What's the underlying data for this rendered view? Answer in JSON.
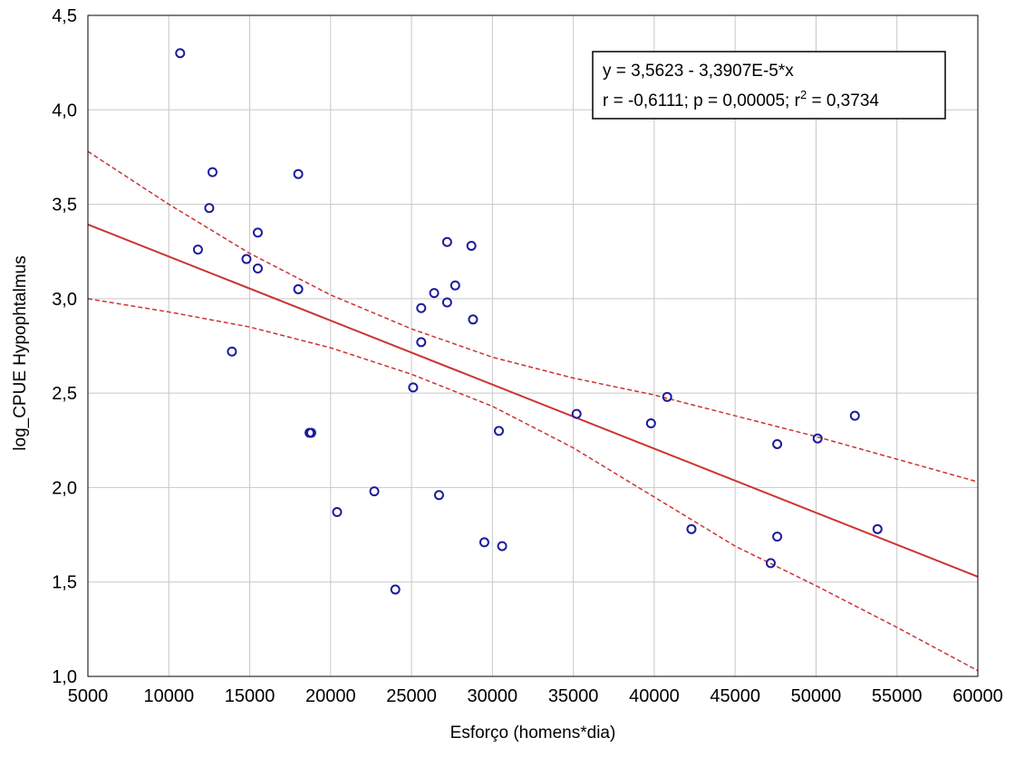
{
  "chart_data": {
    "type": "scatter",
    "title": "",
    "xlabel": "Esforço (homens*dia)",
    "ylabel": "log_CPUE Hypophtalmus",
    "xlim": [
      5000,
      60000
    ],
    "ylim": [
      1.0,
      4.5
    ],
    "xticks": [
      5000,
      10000,
      15000,
      20000,
      25000,
      30000,
      35000,
      40000,
      45000,
      50000,
      55000,
      60000
    ],
    "yticks": [
      1.0,
      1.5,
      2.0,
      2.5,
      3.0,
      3.5,
      4.0,
      4.5
    ],
    "xtick_labels": [
      "5000",
      "10000",
      "15000",
      "20000",
      "25000",
      "30000",
      "35000",
      "40000",
      "45000",
      "50000",
      "55000",
      "60000"
    ],
    "ytick_labels": [
      "1,0",
      "1,5",
      "2,0",
      "2,5",
      "3,0",
      "3,5",
      "4,0",
      "4,5"
    ],
    "grid": true,
    "points": [
      [
        10700,
        4.3
      ],
      [
        11800,
        3.26
      ],
      [
        12500,
        3.48
      ],
      [
        12700,
        3.67
      ],
      [
        13900,
        2.72
      ],
      [
        14800,
        3.21
      ],
      [
        15500,
        3.35
      ],
      [
        15500,
        3.16
      ],
      [
        18000,
        3.66
      ],
      [
        18000,
        3.05
      ],
      [
        18700,
        2.29
      ],
      [
        18800,
        2.29
      ],
      [
        20400,
        1.87
      ],
      [
        22700,
        1.98
      ],
      [
        24000,
        1.46
      ],
      [
        25100,
        2.53
      ],
      [
        25600,
        2.95
      ],
      [
        25600,
        2.77
      ],
      [
        26400,
        3.03
      ],
      [
        26700,
        1.96
      ],
      [
        27200,
        3.3
      ],
      [
        27200,
        2.98
      ],
      [
        27700,
        3.07
      ],
      [
        28700,
        3.28
      ],
      [
        28800,
        2.89
      ],
      [
        29500,
        1.71
      ],
      [
        30400,
        2.3
      ],
      [
        30600,
        1.69
      ],
      [
        35200,
        2.39
      ],
      [
        39800,
        2.34
      ],
      [
        40800,
        2.48
      ],
      [
        42300,
        1.78
      ],
      [
        47200,
        1.6
      ],
      [
        47600,
        2.23
      ],
      [
        47600,
        1.74
      ],
      [
        50100,
        2.26
      ],
      [
        52400,
        2.38
      ],
      [
        53800,
        1.78
      ]
    ],
    "fit": {
      "intercept": 3.5623,
      "slope": -3.3907e-05
    },
    "confidence_upper": [
      [
        5000,
        3.78
      ],
      [
        10000,
        3.5
      ],
      [
        15000,
        3.24
      ],
      [
        20000,
        3.02
      ],
      [
        25000,
        2.84
      ],
      [
        30000,
        2.69
      ],
      [
        35000,
        2.58
      ],
      [
        40000,
        2.49
      ],
      [
        45000,
        2.38
      ],
      [
        50000,
        2.27
      ],
      [
        55000,
        2.15
      ],
      [
        60000,
        2.03
      ]
    ],
    "confidence_lower": [
      [
        5000,
        3.0
      ],
      [
        10000,
        2.93
      ],
      [
        15000,
        2.85
      ],
      [
        20000,
        2.74
      ],
      [
        25000,
        2.6
      ],
      [
        30000,
        2.43
      ],
      [
        35000,
        2.21
      ],
      [
        40000,
        1.95
      ],
      [
        45000,
        1.69
      ],
      [
        50000,
        1.48
      ],
      [
        55000,
        1.26
      ],
      [
        60000,
        1.03
      ]
    ],
    "annotation": {
      "line1": "y = 3,5623 - 3,3907E-5*x",
      "line2_pre": "r = -0,6111; p = 0,00005; r",
      "line2_sup": "2",
      "line2_post": " = 0,3734",
      "placement": "top-right"
    },
    "colors": {
      "points": "#1c1c9c",
      "fit": "#cc3333",
      "grid": "#c8c8c8"
    }
  }
}
